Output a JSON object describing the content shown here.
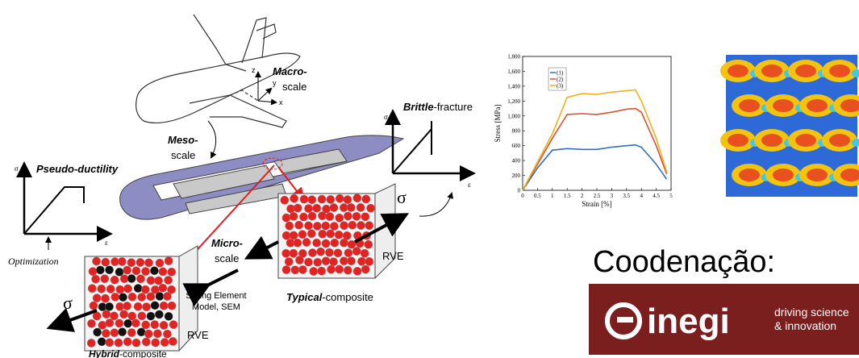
{
  "diagram": {
    "macro": [
      "Macro-",
      "scale"
    ],
    "meso": [
      "Meso-",
      "scale"
    ],
    "micro": [
      "Micro-",
      "scale"
    ],
    "brittle": {
      "bold": "Brittle",
      "rest": "-fracture"
    },
    "ductility": "Pseudo-ductility",
    "optimization": "Optimization",
    "rve": [
      "RVE",
      "RVE"
    ],
    "sem": [
      "Spring Element",
      "Model, SEM"
    ],
    "typical": {
      "bold": "Typical",
      "rest": "-composite"
    },
    "hybrid": {
      "bold": "Hybrid",
      "rest": "-composite"
    },
    "sigma": [
      "σ",
      "σ",
      "σ",
      "σ"
    ],
    "epsilon": [
      "ε",
      "ε"
    ],
    "coords": [
      "z",
      "y",
      "x"
    ]
  },
  "chart_data": {
    "type": "line",
    "x_label": "Strain [%]",
    "y_label": "Stress [MPa]",
    "x": [
      0,
      0.5,
      1,
      1.5,
      2,
      2.5,
      3,
      3.5,
      3.8,
      4,
      4.5,
      4.85
    ],
    "series": [
      {
        "name": "(1)",
        "color": "#2f6fbf",
        "values": [
          0,
          300,
          540,
          560,
          550,
          550,
          580,
          600,
          610,
          580,
          350,
          150
        ]
      },
      {
        "name": "(2)",
        "color": "#d9532b",
        "values": [
          0,
          350,
          700,
          1020,
          1030,
          1020,
          1050,
          1090,
          1100,
          1050,
          600,
          220
        ]
      },
      {
        "name": "(3)",
        "color": "#edb120",
        "values": [
          0,
          380,
          760,
          1250,
          1300,
          1290,
          1320,
          1340,
          1350,
          1200,
          700,
          250
        ]
      }
    ],
    "xlim": [
      0,
      5
    ],
    "ylim": [
      0,
      1800
    ],
    "xticks": [
      0,
      0.5,
      1,
      1.5,
      2,
      2.5,
      3,
      3.5,
      4,
      4.5,
      5
    ],
    "yticks": [
      0,
      200,
      400,
      600,
      800,
      {
        "value": 1000,
        "label": "1,000"
      },
      {
        "value": 1200,
        "label": "1,200"
      },
      {
        "value": 1400,
        "label": "1,400"
      },
      {
        "value": 1600,
        "label": "1,600"
      },
      {
        "value": 1800,
        "label": "1,800"
      }
    ],
    "grid": false,
    "legend": "upper-left"
  },
  "coordination": "Coodenação:",
  "logo": {
    "name": "inegi",
    "tagline": [
      "driving science",
      "& innovation"
    ]
  }
}
